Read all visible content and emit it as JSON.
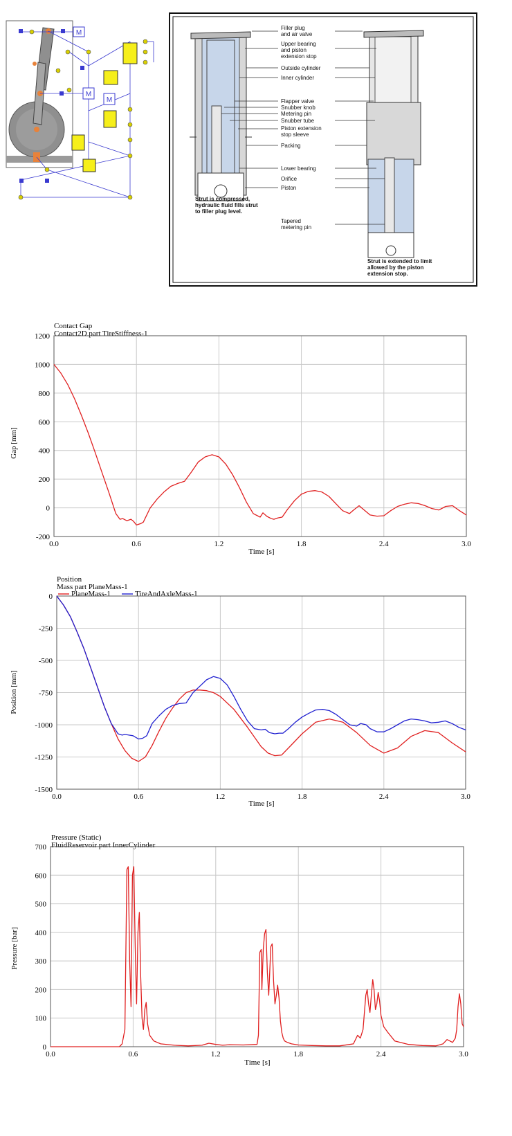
{
  "figure": {
    "strut_diagram": {
      "callouts": [
        {
          "key": "filler",
          "lines": [
            "Filler plug",
            "and air valve"
          ]
        },
        {
          "key": "upper",
          "lines": [
            "Upper bearing",
            "and piston",
            "extension stop"
          ]
        },
        {
          "key": "outside",
          "lines": [
            "Outside cylinder"
          ]
        },
        {
          "key": "inner",
          "lines": [
            "Inner cylinder"
          ]
        },
        {
          "key": "flapper",
          "lines": [
            "Flapper valve"
          ]
        },
        {
          "key": "snubknob",
          "lines": [
            "Snubber knob"
          ]
        },
        {
          "key": "metering",
          "lines": [
            "Metering pin"
          ]
        },
        {
          "key": "snubtube",
          "lines": [
            "Snubber tube"
          ]
        },
        {
          "key": "sleeve",
          "lines": [
            "Piston extension",
            "stop sleeve"
          ]
        },
        {
          "key": "packing",
          "lines": [
            "Packing"
          ]
        },
        {
          "key": "lower",
          "lines": [
            "Lower bearing"
          ]
        },
        {
          "key": "orifice",
          "lines": [
            "Orifice"
          ]
        },
        {
          "key": "piston",
          "lines": [
            "Piston"
          ]
        },
        {
          "key": "tapered",
          "lines": [
            "Tapered",
            "metering pin"
          ]
        }
      ],
      "caption_left": [
        "Strut is compressed,",
        "hydraulic fluid fills strut",
        "to filler plug level."
      ],
      "caption_right": [
        "Strut is extended to limit",
        "allowed by the piston",
        "extension stop."
      ]
    },
    "schematic": {
      "mass_label": "M",
      "colors": {
        "block": "#f6ef1a",
        "link": "#3a3ad0",
        "node": "#d9d000",
        "joint": "#e8823a"
      }
    }
  },
  "chart_data": [
    {
      "type": "line",
      "title": "Contact Gap",
      "subtitle": "Contact2D part TireStiffness-1",
      "xlabel": "Time [s]",
      "ylabel": "Gap [mm]",
      "xlim": [
        0,
        3
      ],
      "ylim": [
        -200,
        1200
      ],
      "xticks": [
        "0.0",
        "0.6",
        "1.2",
        "1.8",
        "2.4",
        "3.0"
      ],
      "yticks": [
        "-200",
        "0",
        "200",
        "400",
        "600",
        "800",
        "1000",
        "1200"
      ],
      "grid": true,
      "series": [
        {
          "color": "#e02020",
          "x": [
            0,
            0.05,
            0.1,
            0.15,
            0.2,
            0.25,
            0.3,
            0.35,
            0.4,
            0.45,
            0.48,
            0.5,
            0.53,
            0.56,
            0.58,
            0.6,
            0.63,
            0.65,
            0.7,
            0.75,
            0.8,
            0.85,
            0.9,
            0.95,
            1.0,
            1.05,
            1.1,
            1.15,
            1.2,
            1.25,
            1.3,
            1.35,
            1.4,
            1.45,
            1.5,
            1.52,
            1.55,
            1.58,
            1.6,
            1.63,
            1.66,
            1.7,
            1.75,
            1.8,
            1.85,
            1.9,
            1.95,
            2.0,
            2.05,
            2.1,
            2.15,
            2.18,
            2.22,
            2.25,
            2.3,
            2.35,
            2.4,
            2.45,
            2.5,
            2.55,
            2.6,
            2.65,
            2.7,
            2.75,
            2.8,
            2.85,
            2.9,
            2.95,
            3.0
          ],
          "y": [
            1000,
            940,
            860,
            760,
            645,
            520,
            385,
            245,
            105,
            -40,
            -80,
            -75,
            -90,
            -80,
            -95,
            -120,
            -110,
            -100,
            0,
            60,
            110,
            150,
            170,
            185,
            250,
            320,
            355,
            370,
            355,
            305,
            230,
            140,
            40,
            -40,
            -65,
            -35,
            -60,
            -75,
            -80,
            -70,
            -65,
            -10,
            50,
            95,
            115,
            120,
            110,
            80,
            30,
            -20,
            -40,
            -15,
            15,
            -10,
            -50,
            -58,
            -55,
            -20,
            10,
            25,
            35,
            30,
            15,
            -5,
            -15,
            10,
            15,
            -20,
            -50
          ]
        }
      ]
    },
    {
      "type": "line",
      "title": "Position",
      "subtitle": "Mass part PlaneMass-1",
      "xlabel": "Time [s]",
      "ylabel": "Position [mm]",
      "xlim": [
        0,
        3
      ],
      "ylim": [
        -1500,
        0
      ],
      "xticks": [
        "0.0",
        "0.6",
        "1.2",
        "1.8",
        "2.4",
        "3.0"
      ],
      "yticks": [
        "-1500",
        "-1250",
        "-1000",
        "-750",
        "-500",
        "-250",
        "0"
      ],
      "grid": true,
      "legend": "top",
      "series": [
        {
          "name": "PlaneMass-1",
          "color": "#e02020",
          "x": [
            0,
            0.05,
            0.1,
            0.15,
            0.2,
            0.25,
            0.3,
            0.35,
            0.4,
            0.45,
            0.5,
            0.55,
            0.6,
            0.65,
            0.7,
            0.75,
            0.8,
            0.85,
            0.9,
            0.95,
            1.0,
            1.05,
            1.1,
            1.15,
            1.2,
            1.3,
            1.4,
            1.5,
            1.55,
            1.6,
            1.65,
            1.7,
            1.8,
            1.9,
            2.0,
            2.1,
            2.2,
            2.3,
            2.4,
            2.5,
            2.6,
            2.7,
            2.8,
            2.9,
            3.0
          ],
          "y": [
            0,
            -70,
            -160,
            -280,
            -410,
            -560,
            -710,
            -860,
            -990,
            -1110,
            -1200,
            -1260,
            -1285,
            -1250,
            -1160,
            -1050,
            -950,
            -870,
            -800,
            -750,
            -730,
            -730,
            -735,
            -750,
            -780,
            -880,
            -1020,
            -1170,
            -1220,
            -1240,
            -1235,
            -1180,
            -1070,
            -980,
            -955,
            -980,
            -1060,
            -1160,
            -1220,
            -1180,
            -1090,
            -1045,
            -1060,
            -1140,
            -1210
          ]
        },
        {
          "name": "TireAndAxleMass-1",
          "color": "#2020d0",
          "x": [
            0,
            0.05,
            0.1,
            0.15,
            0.2,
            0.25,
            0.3,
            0.35,
            0.4,
            0.45,
            0.48,
            0.5,
            0.53,
            0.56,
            0.6,
            0.63,
            0.66,
            0.7,
            0.75,
            0.8,
            0.85,
            0.9,
            0.95,
            1.0,
            1.05,
            1.1,
            1.15,
            1.2,
            1.25,
            1.3,
            1.35,
            1.4,
            1.45,
            1.5,
            1.53,
            1.56,
            1.6,
            1.63,
            1.66,
            1.7,
            1.75,
            1.8,
            1.85,
            1.9,
            1.95,
            2.0,
            2.05,
            2.1,
            2.15,
            2.2,
            2.23,
            2.27,
            2.3,
            2.35,
            2.4,
            2.45,
            2.5,
            2.55,
            2.6,
            2.65,
            2.7,
            2.75,
            2.8,
            2.85,
            2.9,
            2.95,
            3.0
          ],
          "y": [
            0,
            -70,
            -160,
            -280,
            -410,
            -560,
            -710,
            -860,
            -990,
            -1070,
            -1080,
            -1075,
            -1080,
            -1085,
            -1110,
            -1105,
            -1085,
            -990,
            -930,
            -880,
            -850,
            -835,
            -830,
            -750,
            -700,
            -650,
            -625,
            -640,
            -690,
            -780,
            -880,
            -970,
            -1030,
            -1040,
            -1035,
            -1060,
            -1070,
            -1065,
            -1065,
            -1030,
            -980,
            -940,
            -910,
            -885,
            -880,
            -890,
            -920,
            -960,
            -1000,
            -1010,
            -990,
            -1000,
            -1030,
            -1055,
            -1055,
            -1030,
            -1000,
            -970,
            -955,
            -960,
            -970,
            -985,
            -980,
            -970,
            -990,
            -1020,
            -1040
          ]
        }
      ]
    },
    {
      "type": "line",
      "title": "Pressure (Static)",
      "subtitle": "FluidReservoir part InnerCylinder",
      "xlabel": "Time [s]",
      "ylabel": "Pressure [bar]",
      "xlim": [
        0,
        3
      ],
      "ylim": [
        0,
        700
      ],
      "xticks": [
        "0.0",
        "0.6",
        "1.2",
        "1.8",
        "2.4",
        "3.0"
      ],
      "yticks": [
        "0",
        "100",
        "200",
        "300",
        "400",
        "500",
        "600",
        "700"
      ],
      "grid": true,
      "series": [
        {
          "color": "#e02020",
          "x": [
            0,
            0.5,
            0.52,
            0.54,
            0.555,
            0.565,
            0.575,
            0.585,
            0.595,
            0.605,
            0.615,
            0.625,
            0.635,
            0.645,
            0.655,
            0.665,
            0.675,
            0.685,
            0.695,
            0.705,
            0.72,
            0.75,
            0.8,
            0.9,
            1.0,
            1.1,
            1.15,
            1.2,
            1.25,
            1.3,
            1.4,
            1.5,
            1.51,
            1.52,
            1.53,
            1.535,
            1.545,
            1.555,
            1.565,
            1.575,
            1.585,
            1.6,
            1.61,
            1.62,
            1.63,
            1.64,
            1.65,
            1.66,
            1.67,
            1.68,
            1.69,
            1.7,
            1.72,
            1.75,
            1.8,
            1.9,
            2.0,
            2.1,
            2.2,
            2.23,
            2.25,
            2.27,
            2.29,
            2.3,
            2.31,
            2.32,
            2.33,
            2.34,
            2.35,
            2.36,
            2.37,
            2.38,
            2.39,
            2.4,
            2.42,
            2.45,
            2.5,
            2.6,
            2.7,
            2.8,
            2.85,
            2.88,
            2.9,
            2.92,
            2.94,
            2.95,
            2.96,
            2.97,
            2.98,
            2.99,
            3.0
          ],
          "y": [
            0,
            0,
            10,
            60,
            620,
            630,
            300,
            140,
            600,
            630,
            350,
            150,
            400,
            470,
            250,
            100,
            60,
            130,
            155,
            80,
            40,
            20,
            10,
            5,
            3,
            5,
            12,
            8,
            5,
            7,
            6,
            8,
            40,
            330,
            340,
            200,
            340,
            395,
            410,
            260,
            180,
            350,
            360,
            230,
            150,
            180,
            215,
            170,
            90,
            50,
            30,
            20,
            15,
            10,
            6,
            4,
            3,
            3,
            10,
            40,
            30,
            60,
            180,
            200,
            150,
            120,
            180,
            235,
            200,
            130,
            150,
            190,
            160,
            110,
            70,
            50,
            20,
            8,
            4,
            3,
            10,
            25,
            20,
            15,
            30,
            60,
            140,
            185,
            150,
            80,
            70
          ]
        }
      ]
    }
  ]
}
